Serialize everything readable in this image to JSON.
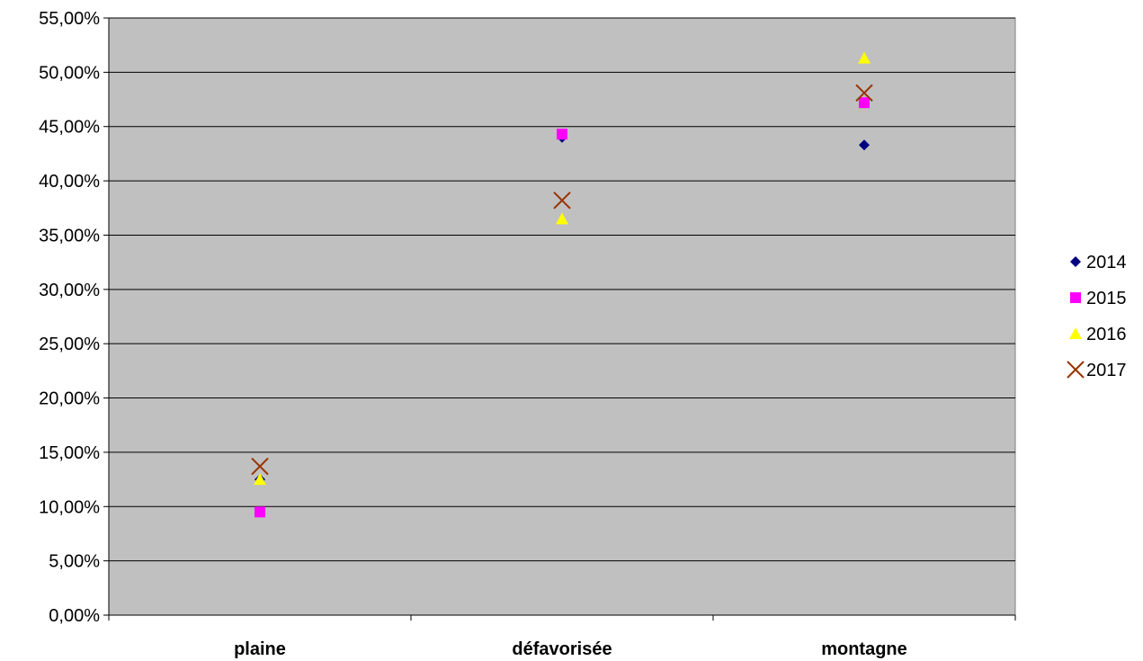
{
  "chart_data": {
    "type": "scatter",
    "title": "",
    "xlabel": "",
    "ylabel": "",
    "categories": [
      "plaine",
      "défavorisée",
      "montagne"
    ],
    "y_ticks": [
      "0,00%",
      "5,00%",
      "10,00%",
      "15,00%",
      "20,00%",
      "25,00%",
      "30,00%",
      "35,00%",
      "40,00%",
      "45,00%",
      "50,00%",
      "55,00%"
    ],
    "ylim": [
      0,
      55
    ],
    "y_unit": "%",
    "grid": true,
    "plot_background": "#c0c0c0",
    "legend_position": "right",
    "series": [
      {
        "name": "2014",
        "marker": "diamond",
        "color": "#000080",
        "values": [
          12.5,
          44.0,
          43.3
        ]
      },
      {
        "name": "2015",
        "marker": "square",
        "color": "#ff00ff",
        "values": [
          9.5,
          44.3,
          47.2
        ]
      },
      {
        "name": "2016",
        "marker": "triangle",
        "color": "#ffff00",
        "values": [
          12.5,
          36.5,
          51.3
        ]
      },
      {
        "name": "2017",
        "marker": "x",
        "color": "#993300",
        "values": [
          13.7,
          38.2,
          48.1
        ]
      }
    ]
  }
}
